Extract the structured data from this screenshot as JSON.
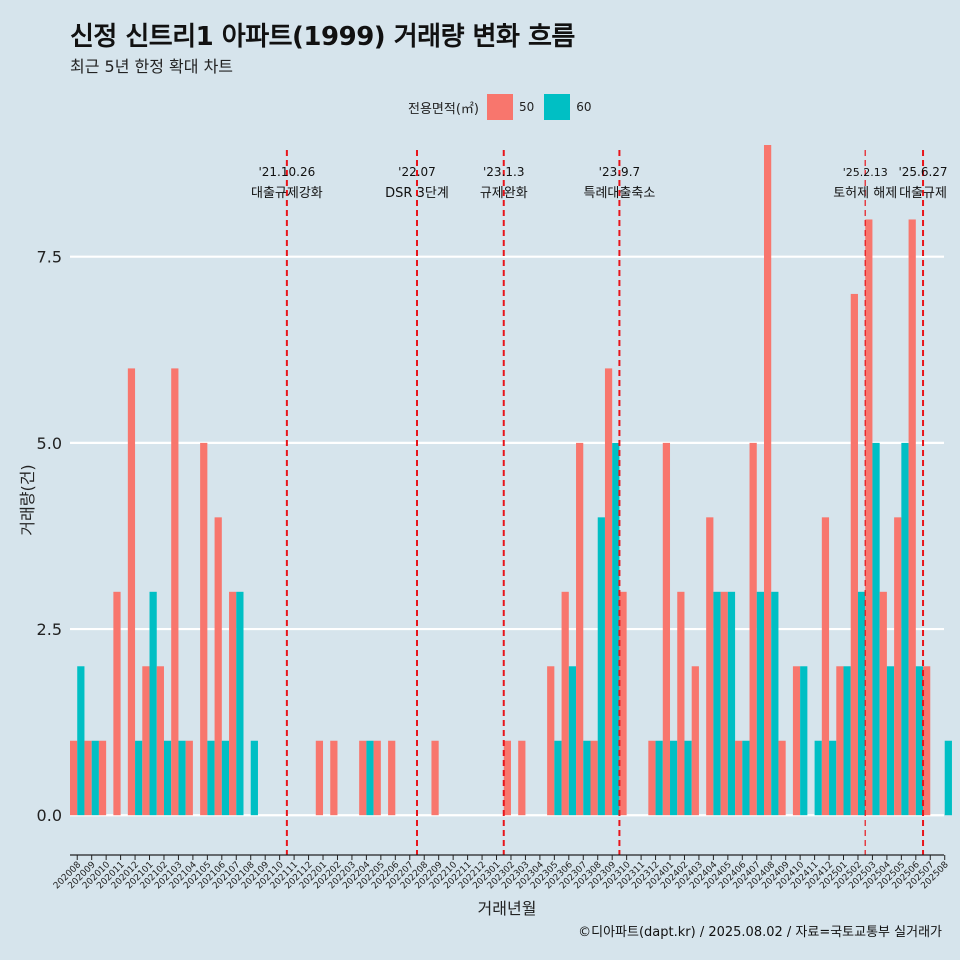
{
  "title": "신정 신트리1 아파트(1999) 거래량 변화 흐름",
  "subtitle": "최근 5년 한정 확대 차트",
  "legend": {
    "title": "전용면적(㎡)",
    "items": [
      {
        "label": "50",
        "color": "#f8766d"
      },
      {
        "label": "60",
        "color": "#00bfc4"
      }
    ]
  },
  "caption": "©디아파트(dapt.kr) / 2025.08.02 / 자료=국토교통부 실거래가",
  "chart_data": {
    "type": "bar",
    "title": "신정 신트리1 아파트(1999) 거래량 변화 흐름",
    "xlabel": "거래년월",
    "ylabel": "거래량(건)",
    "ylim": [
      -0.4,
      9.0
    ],
    "yticks": [
      0.0,
      2.5,
      5.0,
      7.5
    ],
    "ytick_labels": [
      "0.0",
      "2.5",
      "5.0",
      "7.5"
    ],
    "categories": [
      "202008",
      "202009",
      "202010",
      "202011",
      "202012",
      "202101",
      "202102",
      "202103",
      "202104",
      "202105",
      "202106",
      "202107",
      "202108",
      "202109",
      "202110",
      "202111",
      "202112",
      "202201",
      "202202",
      "202203",
      "202204",
      "202205",
      "202206",
      "202207",
      "202208",
      "202209",
      "202210",
      "202211",
      "202212",
      "202301",
      "202302",
      "202303",
      "202304",
      "202305",
      "202306",
      "202307",
      "202308",
      "202309",
      "202310",
      "202311",
      "202312",
      "202401",
      "202402",
      "202403",
      "202404",
      "202405",
      "202406",
      "202407",
      "202408",
      "202409",
      "202410",
      "202411",
      "202412",
      "202501",
      "202502",
      "202503",
      "202504",
      "202505",
      "202506",
      "202507",
      "202508"
    ],
    "series": [
      {
        "name": "50",
        "color": "#f8766d",
        "values": [
          1,
          1,
          1,
          3,
          6,
          2,
          2,
          6,
          1,
          5,
          4,
          3,
          0,
          0,
          0,
          0,
          0,
          1,
          1,
          0,
          1,
          1,
          1,
          0,
          0,
          1,
          0,
          0,
          0,
          0,
          1,
          1,
          0,
          2,
          3,
          5,
          1,
          6,
          3,
          0,
          1,
          5,
          3,
          2,
          4,
          3,
          1,
          5,
          9,
          1,
          2,
          0,
          4,
          2,
          7,
          8,
          3,
          4,
          8,
          2,
          0
        ]
      },
      {
        "name": "60",
        "color": "#00bfc4",
        "values": [
          2,
          1,
          0,
          0,
          1,
          3,
          1,
          1,
          0,
          1,
          1,
          3,
          1,
          0,
          0,
          0,
          0,
          0,
          0,
          0,
          1,
          0,
          0,
          0,
          0,
          0,
          0,
          0,
          0,
          0,
          0,
          0,
          0,
          1,
          2,
          1,
          4,
          5,
          0,
          0,
          1,
          1,
          1,
          0,
          3,
          3,
          1,
          3,
          3,
          0,
          2,
          1,
          1,
          2,
          3,
          5,
          2,
          5,
          2,
          0,
          1
        ]
      }
    ],
    "events": [
      {
        "date": "'21.10.26",
        "label": "대출규제강화",
        "after": "202110"
      },
      {
        "date": "'22.07",
        "label": "DSR 3단계",
        "after": "202207"
      },
      {
        "date": "'23.1.3",
        "label": "규제완화",
        "after": "202301"
      },
      {
        "date": "'23.9.7",
        "label": "특례대출축소",
        "after": "202309"
      },
      {
        "date": "'25.2.13",
        "label": "토허제 해제",
        "after": "202502"
      },
      {
        "date": "'25.6.27",
        "label": "대출규제",
        "after": "202506"
      }
    ]
  }
}
